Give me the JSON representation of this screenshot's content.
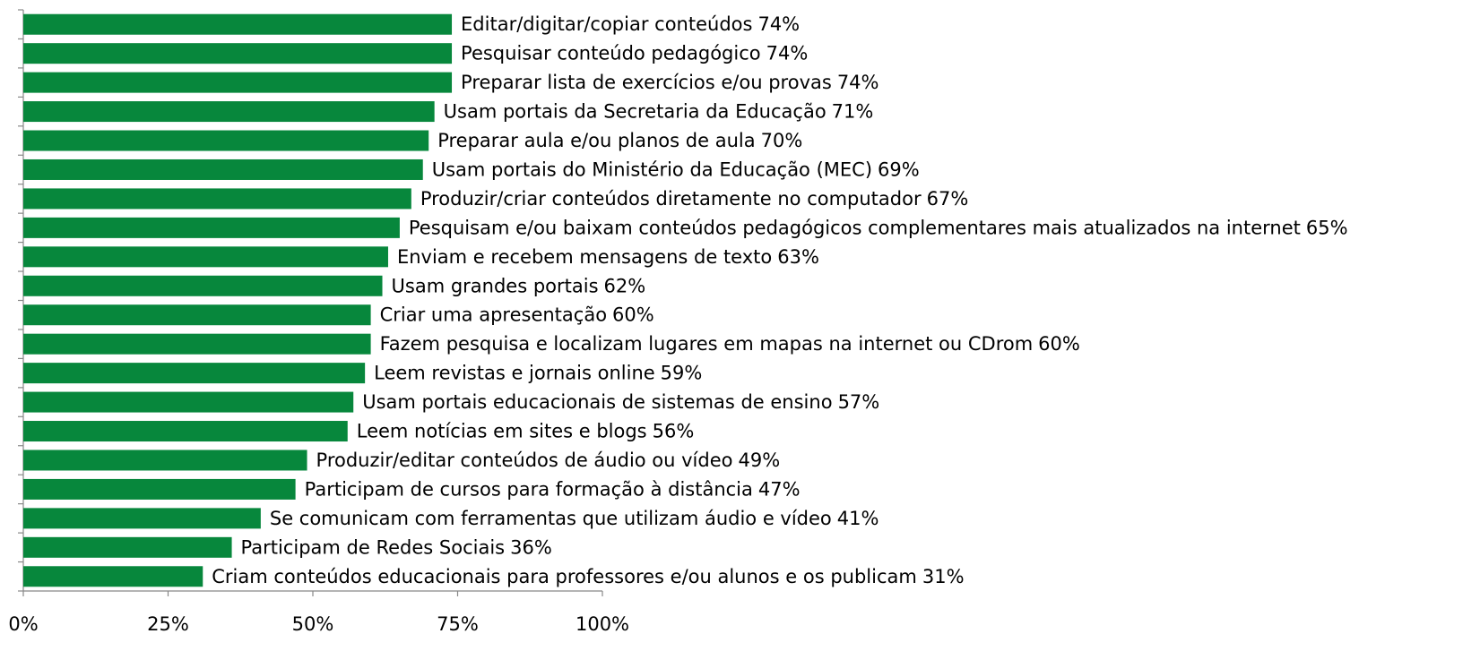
{
  "chart_data": {
    "type": "bar",
    "orientation": "horizontal",
    "categories": [
      "Editar/digitar/copiar conteúdos",
      "Pesquisar conteúdo pedagógico",
      "Preparar lista de exercícios e/ou provas",
      "Usam portais da Secretaria da Educação",
      "Preparar aula e/ou planos de aula",
      "Usam portais do Ministério da Educação (MEC)",
      "Produzir/criar conteúdos diretamente no computador",
      "Pesquisam e/ou baixam conteúdos pedagógicos complementares mais atualizados na internet",
      "Enviam e recebem mensagens de texto",
      "Usam grandes portais",
      "Criar uma apresentação",
      "Fazem pesquisa e localizam lugares em mapas na internet ou CDrom",
      "Leem revistas e jornais online",
      "Usam portais educacionais de sistemas de ensino",
      "Leem notícias em sites e blogs",
      "Produzir/editar conteúdos de áudio ou vídeo",
      "Participam de cursos para formação à distância",
      "Se comunicam com ferramentas que utilizam áudio e vídeo",
      "Participam de Redes Sociais",
      "Criam conteúdos educacionais para professores e/ou alunos e os publicam"
    ],
    "values": [
      74,
      74,
      74,
      71,
      70,
      69,
      67,
      65,
      63,
      62,
      60,
      60,
      59,
      57,
      56,
      49,
      47,
      41,
      36,
      31
    ],
    "value_labels": [
      "74%",
      "74%",
      "74%",
      "71%",
      "70%",
      "69%",
      "67%",
      "65%",
      "63%",
      "62%",
      "60%",
      "60%",
      "59%",
      "57%",
      "56%",
      "49%",
      "47%",
      "41%",
      "36%",
      "31%"
    ],
    "color": "#07873c",
    "xlim": [
      0,
      100
    ],
    "xticks": [
      {
        "value": 0,
        "label": "0%"
      },
      {
        "value": 25,
        "label": "25%"
      },
      {
        "value": 50,
        "label": "50%"
      },
      {
        "value": 75,
        "label": "75%"
      },
      {
        "value": 100,
        "label": "100%"
      }
    ]
  }
}
